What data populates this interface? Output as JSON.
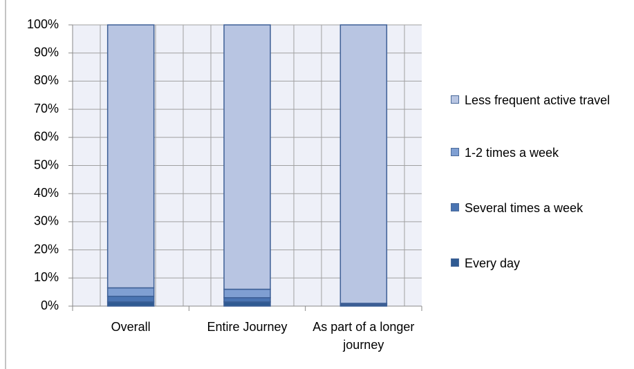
{
  "chart_data": {
    "type": "stacked_bar",
    "categories": [
      "Overall",
      "Entire Journey",
      "As part of a longer journey"
    ],
    "series": [
      {
        "name": "Every day",
        "color": "#2f5a92",
        "values": [
          1.5,
          1.5,
          0.5
        ]
      },
      {
        "name": "Several times a week",
        "color": "#4a74b2",
        "values": [
          2,
          1.5,
          0.3
        ]
      },
      {
        "name": "1-2 times a week",
        "color": "#7f9fd2",
        "values": [
          3,
          3,
          0.2
        ]
      },
      {
        "name": "Less frequent active travel",
        "color": "#b8c5e2",
        "values": [
          93.5,
          94,
          99
        ]
      }
    ],
    "ylim": [
      0,
      100
    ],
    "yticks": [
      {
        "value": 0,
        "label": "0%"
      },
      {
        "value": 10,
        "label": "10%"
      },
      {
        "value": 20,
        "label": "20%"
      },
      {
        "value": 30,
        "label": "30%"
      },
      {
        "value": 40,
        "label": "40%"
      },
      {
        "value": 50,
        "label": "50%"
      },
      {
        "value": 60,
        "label": "60%"
      },
      {
        "value": 70,
        "label": "70%"
      },
      {
        "value": 80,
        "label": "80%"
      },
      {
        "value": 90,
        "label": "90%"
      },
      {
        "value": 100,
        "label": "100%"
      }
    ],
    "grid": true,
    "legend": "right"
  }
}
